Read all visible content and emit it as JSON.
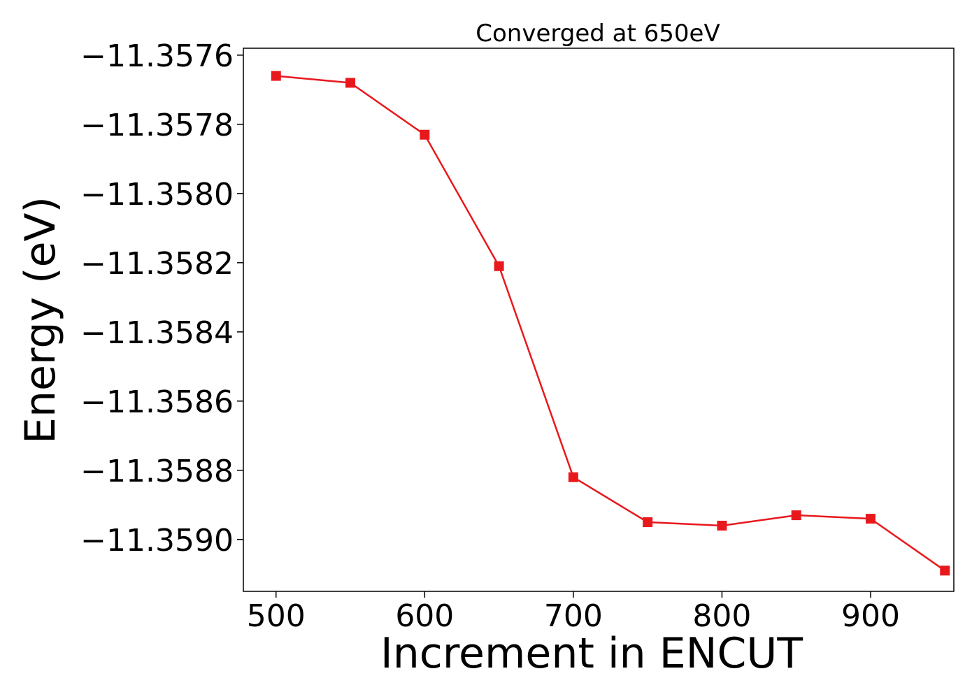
{
  "chart_data": {
    "type": "line",
    "title": "Converged at 650eV",
    "xlabel": "Increment in ENCUT",
    "ylabel": "Energy (eV)",
    "x": [
      500,
      550,
      600,
      650,
      700,
      750,
      800,
      850,
      900,
      950
    ],
    "series": [
      {
        "values": [
          -11.35766,
          -11.35768,
          -11.35783,
          -11.35821,
          -11.35882,
          -11.35895,
          -11.35896,
          -11.35893,
          -11.35894,
          -11.35909
        ]
      }
    ],
    "xlim": [
      478,
      956
    ],
    "ylim": [
      -11.35915,
      -11.35758
    ],
    "xticks": [
      500,
      600,
      700,
      800,
      900
    ],
    "yticks": [
      -11.3576,
      -11.3578,
      -11.358,
      -11.3582,
      -11.3584,
      -11.3586,
      -11.3588,
      -11.359
    ],
    "xtick_labels": [
      "500",
      "600",
      "700",
      "800",
      "900"
    ],
    "ytick_labels": [
      "−11.3576",
      "−11.3578",
      "−11.3580",
      "−11.3582",
      "−11.3584",
      "−11.3586",
      "−11.3588",
      "−11.3590"
    ],
    "colors": {
      "series": "#e8191d",
      "axes": "#000000"
    },
    "marker": "square",
    "grid": false
  }
}
